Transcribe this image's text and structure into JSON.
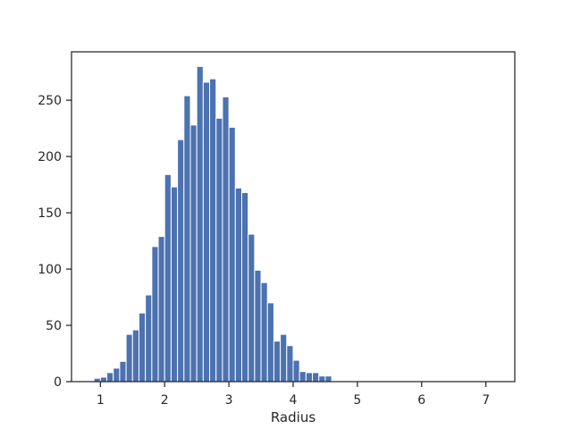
{
  "chart_data": {
    "type": "bar",
    "title": "",
    "xlabel": "Radius",
    "ylabel": "",
    "xlim": [
      0.55,
      7.45
    ],
    "ylim": [
      0,
      293
    ],
    "xticks": [
      1,
      2,
      3,
      4,
      5,
      6,
      7
    ],
    "yticks": [
      0,
      50,
      100,
      150,
      200,
      250
    ],
    "grid": false,
    "bar_color": "#4c72b0",
    "bin_width": 0.1,
    "bins": [
      {
        "x": 0.9,
        "value": 3
      },
      {
        "x": 1.0,
        "value": 4
      },
      {
        "x": 1.1,
        "value": 8
      },
      {
        "x": 1.2,
        "value": 12
      },
      {
        "x": 1.3,
        "value": 18
      },
      {
        "x": 1.4,
        "value": 42
      },
      {
        "x": 1.5,
        "value": 46
      },
      {
        "x": 1.6,
        "value": 61
      },
      {
        "x": 1.7,
        "value": 77
      },
      {
        "x": 1.8,
        "value": 120
      },
      {
        "x": 1.9,
        "value": 129
      },
      {
        "x": 2.0,
        "value": 184
      },
      {
        "x": 2.1,
        "value": 173
      },
      {
        "x": 2.2,
        "value": 215
      },
      {
        "x": 2.3,
        "value": 254
      },
      {
        "x": 2.4,
        "value": 228
      },
      {
        "x": 2.5,
        "value": 280
      },
      {
        "x": 2.6,
        "value": 266
      },
      {
        "x": 2.7,
        "value": 269
      },
      {
        "x": 2.8,
        "value": 234
      },
      {
        "x": 2.9,
        "value": 253
      },
      {
        "x": 3.0,
        "value": 226
      },
      {
        "x": 3.1,
        "value": 172
      },
      {
        "x": 3.2,
        "value": 168
      },
      {
        "x": 3.3,
        "value": 131
      },
      {
        "x": 3.4,
        "value": 99
      },
      {
        "x": 3.5,
        "value": 88
      },
      {
        "x": 3.6,
        "value": 70
      },
      {
        "x": 3.7,
        "value": 36
      },
      {
        "x": 3.8,
        "value": 42
      },
      {
        "x": 3.9,
        "value": 32
      },
      {
        "x": 4.0,
        "value": 19
      },
      {
        "x": 4.1,
        "value": 9
      },
      {
        "x": 4.2,
        "value": 8
      },
      {
        "x": 4.3,
        "value": 8
      },
      {
        "x": 4.4,
        "value": 5
      },
      {
        "x": 4.5,
        "value": 5
      }
    ]
  }
}
